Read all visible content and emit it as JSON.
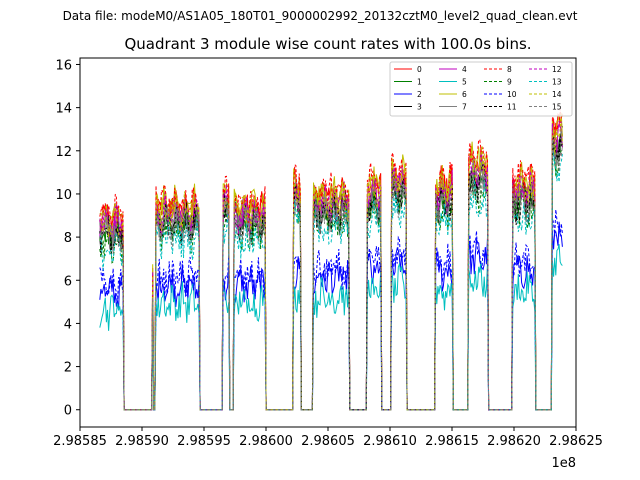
{
  "chart_data": {
    "type": "line",
    "suptitle": "Data file: modeM0/AS1A05_180T01_9000002992_20132cztM0_level2_quad_clean.evt",
    "title": "Quadrant 3 module wise count rates with 100.0s bins.",
    "xlabel": "",
    "ylabel": "",
    "x_offset_label": "1e8",
    "xlim": [
      2.98585,
      2.98625
    ],
    "ylim": [
      -0.8,
      16.3
    ],
    "x_ticks": [
      2.98585,
      2.9859,
      2.98595,
      2.986,
      2.98605,
      2.9861,
      2.98615,
      2.9862,
      2.98625
    ],
    "x_tick_labels": [
      "2.98585",
      "2.98590",
      "2.98595",
      "2.98600",
      "2.98605",
      "2.98610",
      "2.98615",
      "2.98620",
      "2.98625"
    ],
    "y_ticks": [
      0,
      2,
      4,
      6,
      8,
      10,
      12,
      14,
      16
    ],
    "y_tick_labels": [
      "0",
      "2",
      "4",
      "6",
      "8",
      "10",
      "12",
      "14",
      "16"
    ],
    "legend_position": "top-right",
    "grid": false,
    "segments": [
      {
        "x_start": 2.985865,
        "x_end": 2.985885,
        "base_level": 8.5
      },
      {
        "x_start": 2.985908,
        "x_end": 2.985909,
        "base_level": 6.0
      },
      {
        "x_start": 2.985911,
        "x_end": 2.985946,
        "base_level": 9.0
      },
      {
        "x_start": 2.985965,
        "x_end": 2.98597,
        "base_level": 9.5
      },
      {
        "x_start": 2.985974,
        "x_end": 2.986,
        "base_level": 9.0
      },
      {
        "x_start": 2.986022,
        "x_end": 2.986028,
        "base_level": 10.0
      },
      {
        "x_start": 2.986038,
        "x_end": 2.986067,
        "base_level": 9.5
      },
      {
        "x_start": 2.986081,
        "x_end": 2.986093,
        "base_level": 10.0
      },
      {
        "x_start": 2.986101,
        "x_end": 2.986113,
        "base_level": 10.5
      },
      {
        "x_start": 2.986136,
        "x_end": 2.986151,
        "base_level": 10.0
      },
      {
        "x_start": 2.986163,
        "x_end": 2.986179,
        "base_level": 11.0
      },
      {
        "x_start": 2.986199,
        "x_end": 2.986217,
        "base_level": 10.0
      },
      {
        "x_start": 2.986231,
        "x_end": 2.986239,
        "base_level": 12.5
      }
    ],
    "series": [
      {
        "name": "0",
        "color": "#ff0000",
        "dash": "solid",
        "level_factor": 1.04
      },
      {
        "name": "1",
        "color": "#008000",
        "dash": "solid",
        "level_factor": 0.96
      },
      {
        "name": "2",
        "color": "#0000ff",
        "dash": "solid",
        "level_factor": 0.64
      },
      {
        "name": "3",
        "color": "#000000",
        "dash": "solid",
        "level_factor": 0.98
      },
      {
        "name": "4",
        "color": "#bf00bf",
        "dash": "solid",
        "level_factor": 1.0
      },
      {
        "name": "5",
        "color": "#00bfbf",
        "dash": "solid",
        "level_factor": 0.55
      },
      {
        "name": "6",
        "color": "#bfbf00",
        "dash": "solid",
        "level_factor": 1.05
      },
      {
        "name": "7",
        "color": "#808080",
        "dash": "solid",
        "level_factor": 0.97
      },
      {
        "name": "8",
        "color": "#ff0000",
        "dash": "dashed",
        "level_factor": 1.07
      },
      {
        "name": "9",
        "color": "#008000",
        "dash": "dashed",
        "level_factor": 0.92
      },
      {
        "name": "10",
        "color": "#0000ff",
        "dash": "dashed",
        "level_factor": 0.68
      },
      {
        "name": "11",
        "color": "#000000",
        "dash": "dashed",
        "level_factor": 0.95
      },
      {
        "name": "12",
        "color": "#bf00bf",
        "dash": "dashed",
        "level_factor": 1.01
      },
      {
        "name": "13",
        "color": "#00bfbf",
        "dash": "dashed",
        "level_factor": 0.88
      },
      {
        "name": "14",
        "color": "#bfbf00",
        "dash": "dashed",
        "level_factor": 1.02
      },
      {
        "name": "15",
        "color": "#808080",
        "dash": "dashed",
        "level_factor": 0.94
      }
    ]
  }
}
